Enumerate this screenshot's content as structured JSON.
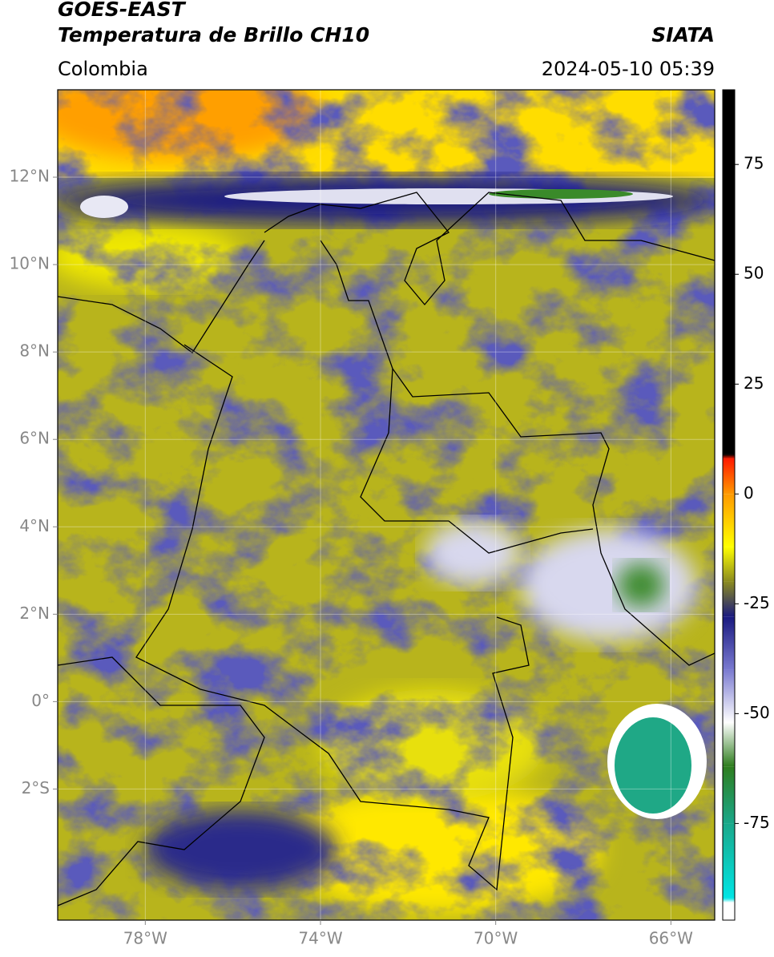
{
  "header": {
    "title": "GOES-EAST",
    "subtitle": "Temperatura de Brillo CH10",
    "source": "SIATA",
    "region": "Colombia",
    "datetime": "2024-05-10 05:39"
  },
  "map": {
    "lonlim": [
      -80,
      -65
    ],
    "latlim": [
      -5,
      14
    ],
    "lon_ticks": [
      {
        "value": -78,
        "label": "78°W"
      },
      {
        "value": -74,
        "label": "74°W"
      },
      {
        "value": -70,
        "label": "70°W"
      },
      {
        "value": -66,
        "label": "66°W"
      }
    ],
    "lat_ticks": [
      {
        "value": 12,
        "label": "12°N"
      },
      {
        "value": 10,
        "label": "10°N"
      },
      {
        "value": 8,
        "label": "8°N"
      },
      {
        "value": 6,
        "label": "6°N"
      },
      {
        "value": 4,
        "label": "4°N"
      },
      {
        "value": 2,
        "label": "2°N"
      },
      {
        "value": 0,
        "label": "0°"
      },
      {
        "value": -2,
        "label": "2°S"
      }
    ],
    "grid": true
  },
  "colorbar": {
    "lim": [
      -97,
      92
    ],
    "ticks": [
      75,
      50,
      25,
      0,
      -25,
      -50,
      -75
    ],
    "colormap": [
      {
        "value": -97,
        "color": "#ffffff"
      },
      {
        "value": -93,
        "color": "#ffffff"
      },
      {
        "value": -92,
        "color": "#00e5e5"
      },
      {
        "value": -75,
        "color": "#1aa88a"
      },
      {
        "value": -62,
        "color": "#2e7d1e"
      },
      {
        "value": -52,
        "color": "#ffffff"
      },
      {
        "value": -40,
        "color": "#7a7ad0"
      },
      {
        "value": -28,
        "color": "#1a1a80"
      },
      {
        "value": -20,
        "color": "#8a8a20"
      },
      {
        "value": -12,
        "color": "#ffff00"
      },
      {
        "value": 0,
        "color": "#ff9900"
      },
      {
        "value": 8,
        "color": "#ff1a00"
      },
      {
        "value": 9,
        "color": "#000000"
      },
      {
        "value": 92,
        "color": "#000000"
      }
    ]
  }
}
